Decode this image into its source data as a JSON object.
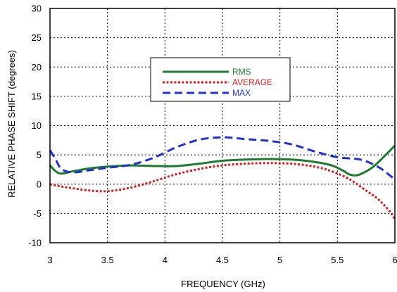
{
  "chart_data": {
    "type": "line",
    "xlabel": "FREQUENCY (GHz)",
    "ylabel": "RELATIVE PHASE SHIFT  (degrees)",
    "xlim": [
      3,
      6
    ],
    "ylim": [
      -10,
      30
    ],
    "xticks": [
      "3",
      "3.5",
      "4",
      "4.5",
      "5",
      "5.5",
      "6"
    ],
    "yticks": [
      "-10",
      "-5",
      "0",
      "5",
      "10",
      "15",
      "20",
      "25",
      "30"
    ],
    "grid": true,
    "legend_position": "upper-center",
    "series": [
      {
        "name": "RMS",
        "color": "#1e7a2e",
        "style": "solid",
        "x": [
          3.0,
          3.05,
          3.1,
          3.2,
          3.35,
          3.5,
          3.7,
          3.9,
          4.1,
          4.3,
          4.5,
          4.7,
          4.9,
          5.1,
          5.3,
          5.45,
          5.55,
          5.6,
          5.65,
          5.7,
          5.8,
          5.9,
          6.0
        ],
        "y": [
          3.2,
          2.2,
          1.8,
          2.2,
          2.7,
          3.0,
          3.2,
          3.1,
          3.1,
          3.5,
          4.0,
          4.2,
          4.3,
          4.2,
          3.8,
          3.2,
          2.3,
          1.7,
          1.5,
          1.7,
          2.8,
          4.6,
          6.6
        ]
      },
      {
        "name": "AVERAGE",
        "color": "#cc1f1f",
        "style": "dotted",
        "x": [
          3.0,
          3.1,
          3.2,
          3.35,
          3.5,
          3.65,
          3.8,
          3.95,
          4.1,
          4.3,
          4.5,
          4.7,
          4.9,
          5.1,
          5.3,
          5.45,
          5.6,
          5.75,
          5.85,
          5.95,
          6.0
        ],
        "y": [
          0.0,
          -0.4,
          -0.7,
          -1.1,
          -1.2,
          -0.8,
          -0.1,
          0.8,
          1.7,
          2.6,
          3.2,
          3.5,
          3.6,
          3.5,
          3.0,
          2.2,
          0.9,
          -1.1,
          -2.5,
          -4.5,
          -6.0
        ]
      },
      {
        "name": "MAX",
        "color": "#1f33cc",
        "style": "dashed",
        "x": [
          3.0,
          3.05,
          3.1,
          3.2,
          3.35,
          3.5,
          3.7,
          3.9,
          4.1,
          4.3,
          4.5,
          4.7,
          4.9,
          5.1,
          5.3,
          5.5,
          5.7,
          5.85,
          5.95,
          6.0
        ],
        "y": [
          5.8,
          4.2,
          2.6,
          2.0,
          2.4,
          2.8,
          3.3,
          4.5,
          6.3,
          7.6,
          8.0,
          7.7,
          7.4,
          6.8,
          5.6,
          4.6,
          4.2,
          3.0,
          1.6,
          0.8
        ]
      }
    ]
  }
}
